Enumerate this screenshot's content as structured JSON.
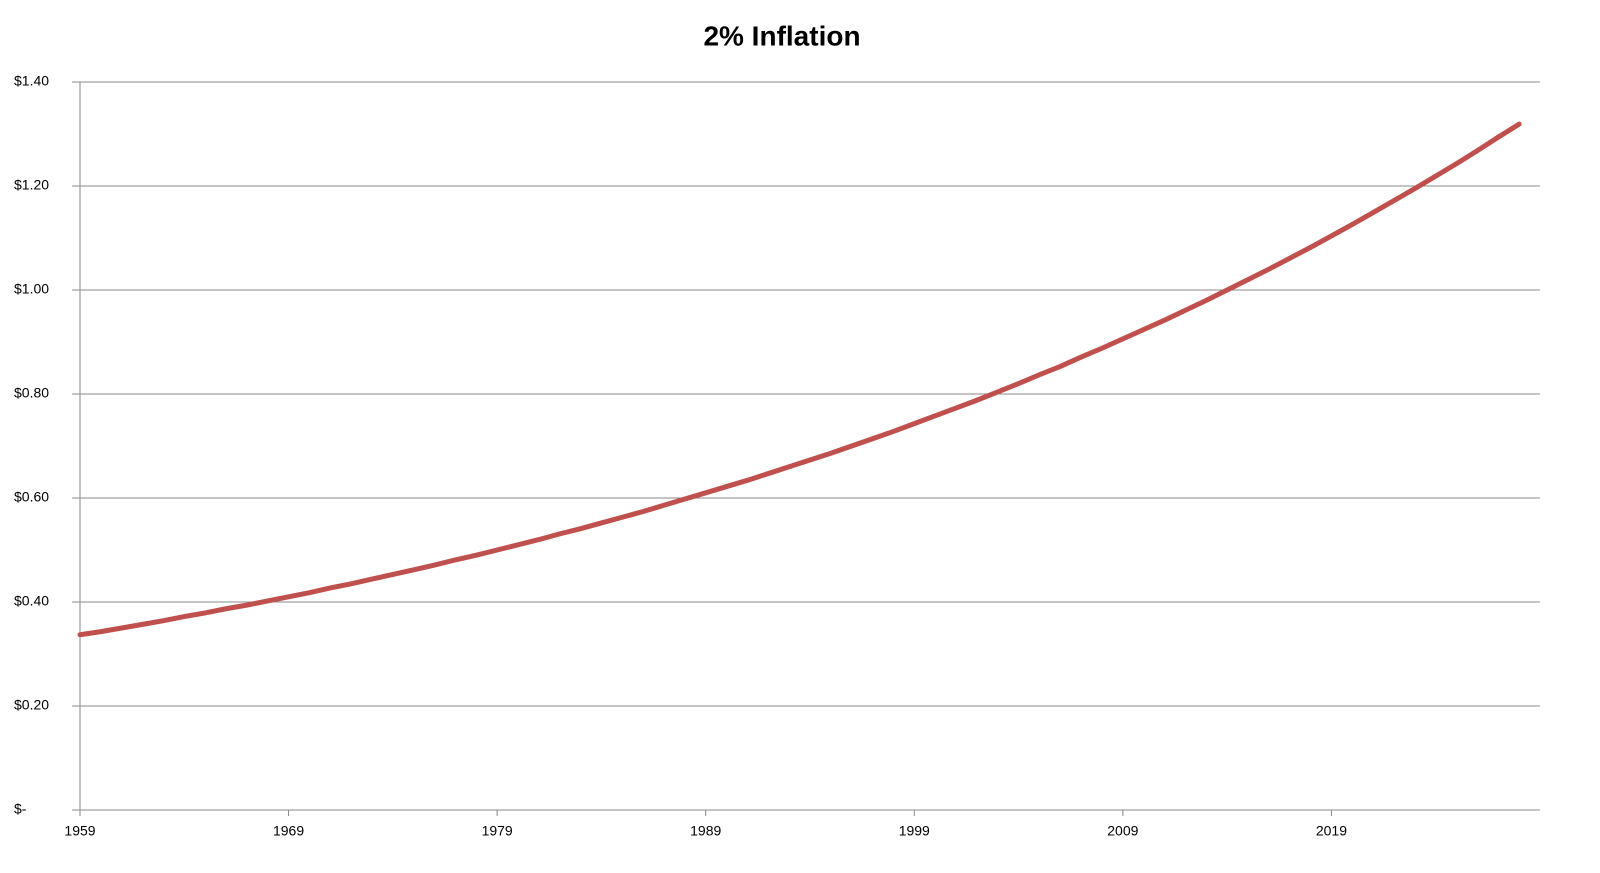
{
  "chart_data": {
    "type": "line",
    "title": "2% Inflation",
    "x": [
      1959,
      1960,
      1961,
      1962,
      1963,
      1964,
      1965,
      1966,
      1967,
      1968,
      1969,
      1970,
      1971,
      1972,
      1973,
      1974,
      1975,
      1976,
      1977,
      1978,
      1979,
      1980,
      1981,
      1982,
      1983,
      1984,
      1985,
      1986,
      1987,
      1988,
      1989,
      1990,
      1991,
      1992,
      1993,
      1994,
      1995,
      1996,
      1997,
      1998,
      1999,
      2000,
      2001,
      2002,
      2003,
      2004,
      2005,
      2006,
      2007,
      2008,
      2009,
      2010,
      2011,
      2012,
      2013,
      2014,
      2015,
      2016,
      2017,
      2018,
      2019,
      2020,
      2021,
      2022,
      2023,
      2024,
      2025,
      2026,
      2027,
      2028
    ],
    "series": [
      {
        "color": "#c0504d",
        "values": [
          0.337,
          0.343,
          0.35,
          0.357,
          0.364,
          0.372,
          0.379,
          0.387,
          0.394,
          0.402,
          0.41,
          0.418,
          0.427,
          0.435,
          0.444,
          0.453,
          0.462,
          0.471,
          0.481,
          0.49,
          0.5,
          0.51,
          0.52,
          0.531,
          0.541,
          0.552,
          0.563,
          0.574,
          0.586,
          0.598,
          0.61,
          0.622,
          0.634,
          0.647,
          0.66,
          0.673,
          0.686,
          0.7,
          0.714,
          0.728,
          0.743,
          0.758,
          0.773,
          0.788,
          0.804,
          0.82,
          0.837,
          0.853,
          0.871,
          0.888,
          0.906,
          0.924,
          0.942,
          0.961,
          0.98,
          1.0,
          1.02,
          1.04,
          1.061,
          1.082,
          1.104,
          1.126,
          1.149,
          1.172,
          1.195,
          1.219,
          1.243,
          1.268,
          1.294,
          1.319
        ]
      }
    ],
    "xlim": [
      1959,
      2029
    ],
    "xticks": [
      1959,
      1969,
      1979,
      1989,
      1999,
      2009,
      2019
    ],
    "ylim": [
      0,
      1.4
    ],
    "yticks": [
      {
        "value": 0,
        "label": "$-"
      },
      {
        "value": 0.2,
        "label": "$0.20"
      },
      {
        "value": 0.4,
        "label": "$0.40"
      },
      {
        "value": 0.6,
        "label": "$0.60"
      },
      {
        "value": 0.8,
        "label": "$0.80"
      },
      {
        "value": 1.0,
        "label": "$1.00"
      },
      {
        "value": 1.2,
        "label": "$1.20"
      },
      {
        "value": 1.4,
        "label": "$1.40"
      }
    ],
    "grid": true
  }
}
